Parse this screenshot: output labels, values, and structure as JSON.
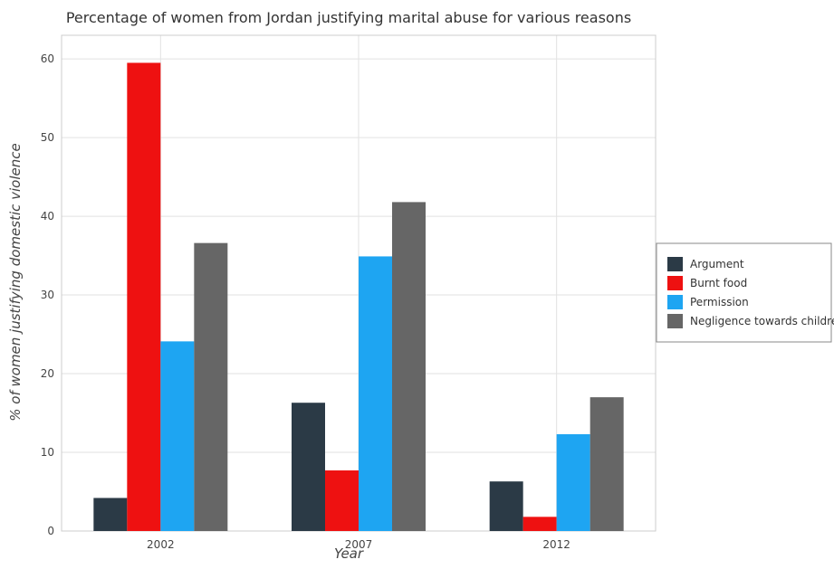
{
  "chart_data": {
    "type": "bar",
    "title": "Percentage of women from Jordan justifying marital abuse for various reasons",
    "xlabel": "Year",
    "ylabel": "% of women justifying domestic violence",
    "categories": [
      "2002",
      "2007",
      "2012"
    ],
    "ylim": [
      0,
      63
    ],
    "yticks": [
      0,
      10,
      20,
      30,
      40,
      50,
      60
    ],
    "grid": true,
    "legend_position": "right",
    "series": [
      {
        "name": "Argument",
        "color": "#2b3a46",
        "values": [
          4.2,
          16.3,
          6.3
        ]
      },
      {
        "name": "Burnt food",
        "color": "#ee1111",
        "values": [
          59.5,
          7.7,
          1.8
        ]
      },
      {
        "name": "Permission",
        "color": "#1ea5f2",
        "values": [
          24.1,
          34.9,
          12.3
        ]
      },
      {
        "name": "Negligence towards children",
        "color": "#666666",
        "values": [
          36.6,
          41.8,
          17.0
        ]
      }
    ]
  }
}
